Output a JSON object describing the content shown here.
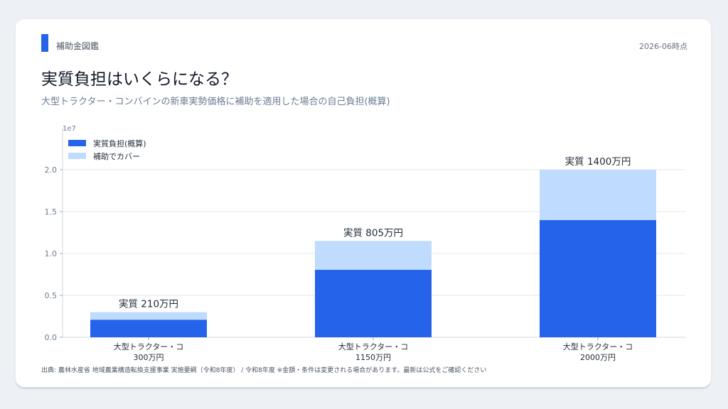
{
  "header": {
    "brand": "補助金図鑑",
    "as_of": "2026-06時点",
    "title": "実質負担はいくらになる？",
    "subtitle": "大型トラクター・コンバインの新車実勢価格に補助を適用した場合の自己負担(概算)"
  },
  "footer": {
    "source": "出典: 農林水産省 地域農業構造転換支援事業 実施要綱（令和8年度） / 令和8年度 ※金額・条件は変更される場合があります。最新は公式をご確認ください"
  },
  "colors": {
    "self_burden": "#2563eb",
    "subsidy": "#bfdbfe"
  },
  "chart_data": {
    "type": "bar",
    "stacked": true,
    "categories": [
      [
        "大型トラクター・コ",
        "300万円"
      ],
      [
        "大型トラクター・コ",
        "1150万円"
      ],
      [
        "大型トラクター・コ",
        "2000万円"
      ]
    ],
    "series": [
      {
        "name": "実質負担(概算)",
        "color": "#2563eb",
        "values": [
          2100000,
          8050000,
          14000000
        ]
      },
      {
        "name": "補助でカバー",
        "color": "#bfdbfe",
        "values": [
          900000,
          3450000,
          6000000
        ]
      }
    ],
    "data_labels": [
      "実質 210万円",
      "実質 805万円",
      "実質 1400万円"
    ],
    "yticks": [
      0,
      5000000,
      10000000,
      15000000,
      20000000
    ],
    "ytick_labels": [
      "0.0",
      "0.5",
      "1.0",
      "1.5",
      "2.0"
    ],
    "y_offset_label": "1e7",
    "ylim": [
      0,
      20000000
    ],
    "grid": true,
    "legend_position": "top-left"
  }
}
